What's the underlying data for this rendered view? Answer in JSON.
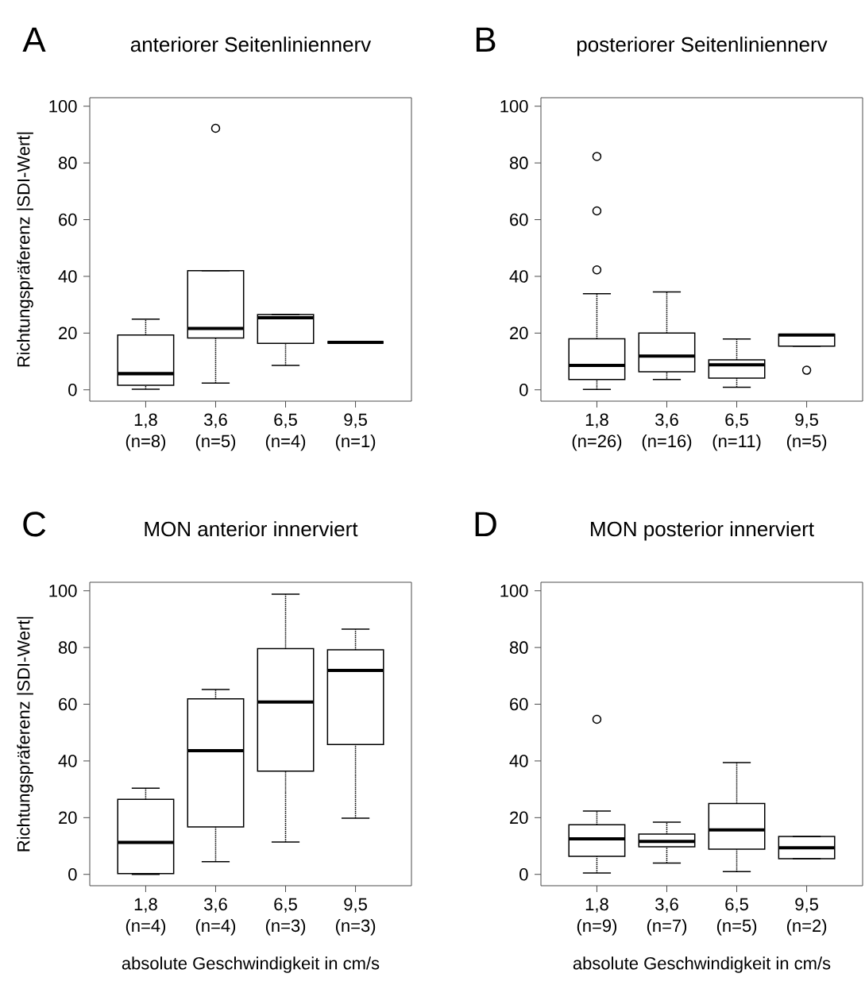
{
  "chart_data": [
    {
      "type": "box",
      "annotations": [
        "A"
      ],
      "title": "anteriorer Seitenliniennerv",
      "ylabel": "Richtungspräferenz |SDI-Wert|",
      "categories": [
        "1,8 (n=8)",
        "3,6 (n=5)",
        "6,5 (n=4)",
        "9,5 (n=1)"
      ],
      "boxes": [
        {
          "low": 0.2,
          "q1": 1.6,
          "median": 5.7,
          "q3": 19.3,
          "high": 24.9
        },
        {
          "low": 2.4,
          "q1": 18.3,
          "median": 21.6,
          "q3": 42.0,
          "high": 42.0,
          "outliers": [
            92.2
          ]
        },
        {
          "low": 8.6,
          "q1": 16.4,
          "median": 25.4,
          "q3": 26.5,
          "high": 26.5
        },
        {
          "low": 16.7,
          "q1": 16.7,
          "median": 16.7,
          "q3": 16.7,
          "high": 16.7
        }
      ],
      "ylim": [
        -4,
        103
      ],
      "yticks": [
        0,
        20,
        40,
        60,
        80,
        100
      ]
    },
    {
      "type": "box",
      "annotations": [
        "B"
      ],
      "title": "posteriorer Seitenliniennerv",
      "categories": [
        "1,8 (n=26)",
        "3,6 (n=16)",
        "6,5 (n=11)",
        "9,5 (n=5)"
      ],
      "boxes": [
        {
          "low": 0.1,
          "q1": 3.6,
          "median": 8.6,
          "q3": 18.0,
          "high": 33.9,
          "outliers": [
            42.3,
            63.1,
            82.3
          ]
        },
        {
          "low": 3.6,
          "q1": 6.4,
          "median": 11.9,
          "q3": 20.0,
          "high": 34.5
        },
        {
          "low": 0.9,
          "q1": 4.1,
          "median": 8.8,
          "q3": 10.6,
          "high": 17.9
        },
        {
          "low": 15.4,
          "q1": 15.4,
          "median": 19.3,
          "q3": 19.6,
          "high": 19.6,
          "outliers": [
            6.9
          ]
        }
      ],
      "ylim": [
        -4,
        103
      ],
      "yticks": [
        0,
        20,
        40,
        60,
        80,
        100
      ]
    },
    {
      "type": "box",
      "annotations": [
        "C"
      ],
      "title": "MON anterior innerviert",
      "ylabel": "Richtungspräferenz |SDI-Wert|",
      "xlabel": "absolute Geschwindigkeit in cm/s",
      "categories": [
        "1,8 (n=4)",
        "3,6 (n=4)",
        "6,5 (n=3)",
        "9,5 (n=3)"
      ],
      "boxes": [
        {
          "low": 0.0,
          "q1": 0.3,
          "median": 11.3,
          "q3": 26.5,
          "high": 30.4
        },
        {
          "low": 4.5,
          "q1": 16.7,
          "median": 43.6,
          "q3": 61.9,
          "high": 65.2
        },
        {
          "low": 11.4,
          "q1": 36.4,
          "median": 60.8,
          "q3": 79.6,
          "high": 98.8
        },
        {
          "low": 19.8,
          "q1": 45.8,
          "median": 71.9,
          "q3": 79.2,
          "high": 86.5
        }
      ],
      "ylim": [
        -4,
        103
      ],
      "yticks": [
        0,
        20,
        40,
        60,
        80,
        100
      ]
    },
    {
      "type": "box",
      "annotations": [
        "D"
      ],
      "title": "MON posterior innerviert",
      "xlabel": "absolute Geschwindigkeit in cm/s",
      "categories": [
        "1,8 (n=9)",
        "3,6 (n=7)",
        "6,5 (n=5)",
        "9,5 (n=2)"
      ],
      "boxes": [
        {
          "low": 0.5,
          "q1": 6.4,
          "median": 12.5,
          "q3": 17.5,
          "high": 22.3,
          "outliers": [
            54.7
          ]
        },
        {
          "low": 4.0,
          "q1": 9.7,
          "median": 11.6,
          "q3": 14.2,
          "high": 18.4
        },
        {
          "low": 1.0,
          "q1": 8.9,
          "median": 15.7,
          "q3": 25.0,
          "high": 39.4
        },
        {
          "low": 5.5,
          "q1": 5.5,
          "median": 9.4,
          "q3": 13.4,
          "high": 13.4
        }
      ],
      "ylim": [
        -4,
        103
      ],
      "yticks": [
        0,
        20,
        40,
        60,
        80,
        100
      ]
    }
  ]
}
